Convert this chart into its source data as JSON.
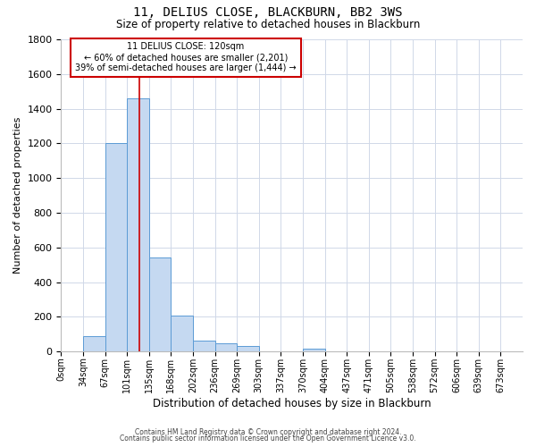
{
  "title": "11, DELIUS CLOSE, BLACKBURN, BB2 3WS",
  "subtitle": "Size of property relative to detached houses in Blackburn",
  "xlabel": "Distribution of detached houses by size in Blackburn",
  "ylabel": "Number of detached properties",
  "bar_labels": [
    "0sqm",
    "34sqm",
    "67sqm",
    "101sqm",
    "135sqm",
    "168sqm",
    "202sqm",
    "236sqm",
    "269sqm",
    "303sqm",
    "337sqm",
    "370sqm",
    "404sqm",
    "437sqm",
    "471sqm",
    "505sqm",
    "538sqm",
    "572sqm",
    "606sqm",
    "639sqm",
    "673sqm"
  ],
  "bar_values": [
    0,
    90,
    1200,
    1460,
    540,
    205,
    65,
    47,
    30,
    0,
    0,
    15,
    0,
    0,
    0,
    0,
    0,
    0,
    0,
    0,
    0
  ],
  "bar_color": "#c5d9f1",
  "bar_edge_color": "#5b9bd5",
  "property_sqm": 120,
  "bar_edges_sqm": [
    0,
    34,
    67,
    101,
    135,
    168,
    202,
    236,
    269,
    303,
    337,
    370,
    404,
    437,
    471,
    505,
    538,
    572,
    606,
    639,
    673
  ],
  "annotation_title": "11 DELIUS CLOSE: 120sqm",
  "annotation_line1": "← 60% of detached houses are smaller (2,201)",
  "annotation_line2": "39% of semi-detached houses are larger (1,444) →",
  "box_color": "#cc0000",
  "ylim": [
    0,
    1800
  ],
  "yticks": [
    0,
    200,
    400,
    600,
    800,
    1000,
    1200,
    1400,
    1600,
    1800
  ],
  "footnote1": "Contains HM Land Registry data © Crown copyright and database right 2024.",
  "footnote2": "Contains public sector information licensed under the Open Government Licence v3.0.",
  "background_color": "#ffffff",
  "grid_color": "#d0d8e8"
}
